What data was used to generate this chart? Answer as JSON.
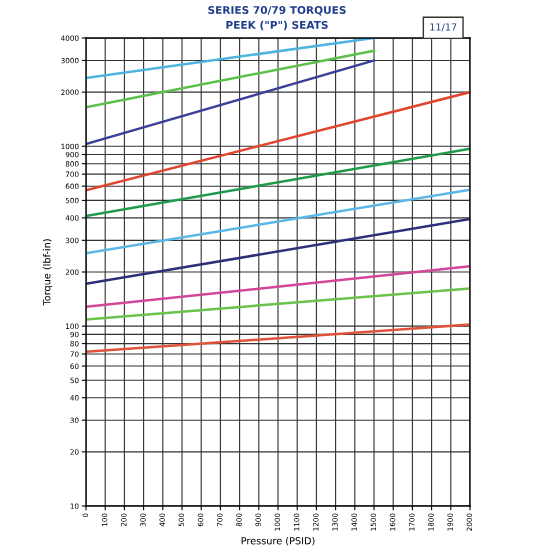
{
  "chart_data": {
    "type": "line",
    "title": "SERIES 70/79 TORQUES",
    "subtitle": "PEEK (\"P\") SEATS",
    "xlabel": "Pressure (PSID)",
    "ylabel": "Torque (lbf-in)",
    "annotations": [
      "11/17"
    ],
    "log": "y",
    "grid": true,
    "marker": "none",
    "line_style": "solid",
    "xlim": [
      0,
      2000
    ],
    "xticks": [
      0,
      100,
      200,
      300,
      400,
      500,
      600,
      700,
      800,
      900,
      1000,
      1100,
      1200,
      1300,
      1400,
      1500,
      1600,
      1700,
      1800,
      1900,
      2000
    ],
    "ylim": [
      10,
      4000
    ],
    "yticks": [
      10,
      20,
      30,
      40,
      50,
      60,
      70,
      80,
      90,
      100,
      200,
      300,
      400,
      500,
      600,
      700,
      800,
      900,
      1000,
      2000,
      3000,
      4000
    ],
    "series": [
      {
        "color": "#4fb3e0",
        "x": [
          0,
          1500
        ],
        "values": [
          2400,
          4000
        ]
      },
      {
        "color": "#5cbf4a",
        "x": [
          0,
          1500
        ],
        "values": [
          1650,
          3400
        ]
      },
      {
        "color": "#3b3f9a",
        "x": [
          0,
          1500
        ],
        "values": [
          1030,
          3000
        ]
      },
      {
        "color": "#e0452e",
        "x": [
          0,
          2000
        ],
        "values": [
          570,
          2000
        ]
      },
      {
        "color": "#1f9a4a",
        "x": [
          0,
          2000
        ],
        "values": [
          410,
          970
        ]
      },
      {
        "color": "#5ab8e6",
        "x": [
          0,
          2000
        ],
        "values": [
          254,
          573
        ]
      },
      {
        "color": "#2c2f7a",
        "x": [
          0,
          2000
        ],
        "values": [
          172,
          394
        ]
      },
      {
        "color": "#d2479a",
        "x": [
          0,
          2000
        ],
        "values": [
          128,
          215
        ]
      },
      {
        "color": "#6cc24a",
        "x": [
          0,
          2000
        ],
        "values": [
          109,
          162
        ]
      },
      {
        "color": "#e0533a",
        "x": [
          0,
          2000
        ],
        "values": [
          72,
          102
        ]
      }
    ]
  }
}
